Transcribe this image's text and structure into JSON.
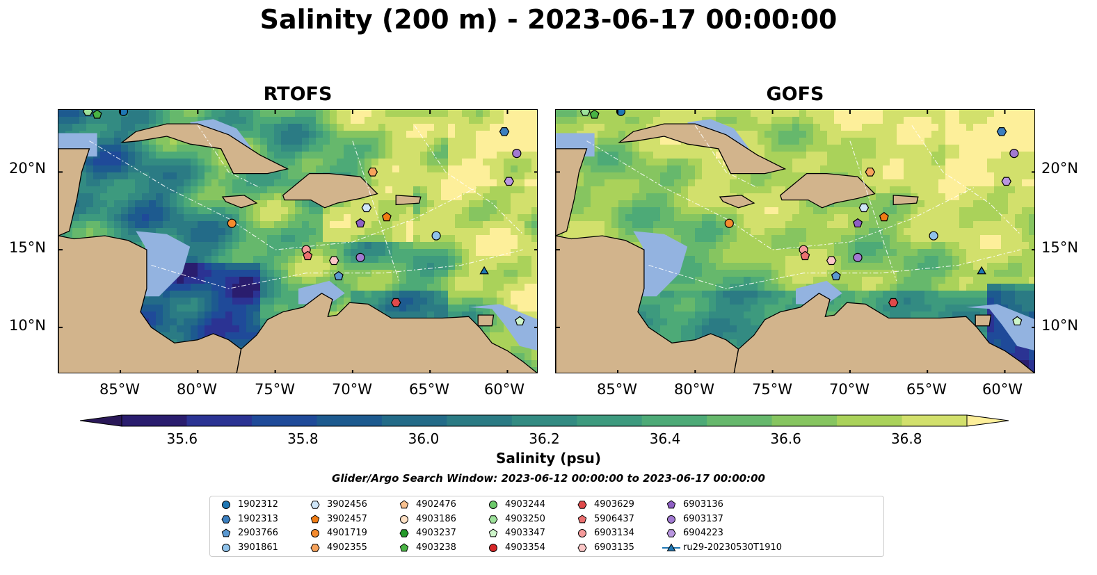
{
  "title": "Salinity (200 m) - 2023-06-17 00:00:00",
  "panels": [
    {
      "title": "RTOFS",
      "model": "rtofs"
    },
    {
      "title": "GOFS",
      "model": "gofs"
    }
  ],
  "map_extent": {
    "lon_min": -89,
    "lon_max": -58,
    "lat_min": 7,
    "lat_max": 24
  },
  "lat_ticks": [
    {
      "value": 20,
      "label": "20°N"
    },
    {
      "value": 15,
      "label": "15°N"
    },
    {
      "value": 10,
      "label": "10°N"
    }
  ],
  "lon_ticks": [
    {
      "value": -85,
      "label": "85°W"
    },
    {
      "value": -80,
      "label": "80°W"
    },
    {
      "value": -75,
      "label": "75°W"
    },
    {
      "value": -70,
      "label": "70°W"
    },
    {
      "value": -65,
      "label": "65°W"
    },
    {
      "value": -60,
      "label": "60°W"
    }
  ],
  "colorbar": {
    "label": "Salinity (psu)",
    "min": 35.5,
    "max": 36.9,
    "step": 0.1,
    "extend": "both",
    "ticks": [
      {
        "value": 35.6,
        "label": "35.6"
      },
      {
        "value": 35.8,
        "label": "35.8"
      },
      {
        "value": 36.0,
        "label": "36.0"
      },
      {
        "value": 36.2,
        "label": "36.2"
      },
      {
        "value": 36.4,
        "label": "36.4"
      },
      {
        "value": 36.6,
        "label": "36.6"
      },
      {
        "value": 36.8,
        "label": "36.8"
      }
    ],
    "colors": [
      "#2a1d6e",
      "#2b3393",
      "#1f4a99",
      "#1d5a8f",
      "#236b88",
      "#2b7b84",
      "#338b82",
      "#3d9a7e",
      "#4daa77",
      "#66b86c",
      "#86c560",
      "#aad25a",
      "#d2e06c"
    ],
    "under_color": "#2a1858",
    "over_color": "#fdef9a"
  },
  "land_color": "#d2b48c",
  "shelf_color": "#93b3e0",
  "search_window": "Glider/Argo Search Window: 2023-06-12 00:00:00 to 2023-06-17 00:00:00",
  "legend": {
    "items": [
      {
        "label": "1902312",
        "marker": "circle",
        "color": "#1f77b4"
      },
      {
        "label": "1902313",
        "marker": "hexagon",
        "color": "#3c7fbf"
      },
      {
        "label": "2903766",
        "marker": "pentagon",
        "color": "#5a98d0"
      },
      {
        "label": "3901861",
        "marker": "circle",
        "color": "#8fc2ea"
      },
      {
        "label": "3902456",
        "marker": "hexagon",
        "color": "#cfe6f8"
      },
      {
        "label": "3902457",
        "marker": "pentagon",
        "color": "#f07c14"
      },
      {
        "label": "4901719",
        "marker": "circle",
        "color": "#f58b2e"
      },
      {
        "label": "4902355",
        "marker": "hexagon",
        "color": "#f7a35c"
      },
      {
        "label": "4902476",
        "marker": "pentagon",
        "color": "#f9c18f"
      },
      {
        "label": "4903186",
        "marker": "circle",
        "color": "#fde0c4"
      },
      {
        "label": "4903237",
        "marker": "hexagon",
        "color": "#249a2a"
      },
      {
        "label": "4903238",
        "marker": "pentagon",
        "color": "#49b444"
      },
      {
        "label": "4903244",
        "marker": "circle",
        "color": "#6cc96a"
      },
      {
        "label": "4903250",
        "marker": "hexagon",
        "color": "#9de19a"
      },
      {
        "label": "4903347",
        "marker": "pentagon",
        "color": "#cdf5c9"
      },
      {
        "label": "4903354",
        "marker": "circle",
        "color": "#d62728"
      },
      {
        "label": "4903629",
        "marker": "hexagon",
        "color": "#e04a4b"
      },
      {
        "label": "5906437",
        "marker": "pentagon",
        "color": "#ec7070"
      },
      {
        "label": "6903134",
        "marker": "circle",
        "color": "#f59a9a"
      },
      {
        "label": "6903135",
        "marker": "hexagon",
        "color": "#fbc6c6"
      },
      {
        "label": "6903136",
        "marker": "pentagon",
        "color": "#8e5fc4"
      },
      {
        "label": "6903137",
        "marker": "circle",
        "color": "#a27ad2"
      },
      {
        "label": "6904223",
        "marker": "hexagon",
        "color": "#b996e0"
      },
      {
        "label": "ru29-20230530T1910",
        "marker": "triangle-line",
        "color": "#1f77b4"
      }
    ]
  },
  "observations": [
    {
      "id": "1902312",
      "lon": -84.8,
      "lat": 23.9
    },
    {
      "id": "1902313",
      "lon": -60.2,
      "lat": 22.6
    },
    {
      "id": "6903137",
      "lon": -59.4,
      "lat": 21.2
    },
    {
      "id": "6904223",
      "lon": -59.9,
      "lat": 19.4
    },
    {
      "id": "4902355",
      "lon": -68.7,
      "lat": 20.0
    },
    {
      "id": "3902456",
      "lon": -69.1,
      "lat": 17.7
    },
    {
      "id": "3902457",
      "lon": -67.8,
      "lat": 17.1
    },
    {
      "id": "6903136",
      "lon": -69.5,
      "lat": 16.7
    },
    {
      "id": "4901719",
      "lon": -77.8,
      "lat": 16.7
    },
    {
      "id": "3901861",
      "lon": -64.6,
      "lat": 15.9
    },
    {
      "id": "6903134",
      "lon": -73.0,
      "lat": 15.0
    },
    {
      "id": "5906437",
      "lon": -72.9,
      "lat": 14.6
    },
    {
      "id": "6903135",
      "lon": -71.2,
      "lat": 14.3
    },
    {
      "id": "6903137b",
      "lon": -69.5,
      "lat": 14.5
    },
    {
      "id": "2903766",
      "lon": -70.9,
      "lat": 13.3
    },
    {
      "id": "4903629",
      "lon": -67.2,
      "lat": 11.6
    },
    {
      "id": "4903347",
      "lon": -59.2,
      "lat": 10.4
    },
    {
      "id": "4903238",
      "lon": -86.5,
      "lat": 23.7
    },
    {
      "id": "4903250",
      "lon": -87.1,
      "lat": 23.9
    },
    {
      "id": "ru29-20230530T1910",
      "lon": -61.5,
      "lat": 13.6
    }
  ]
}
